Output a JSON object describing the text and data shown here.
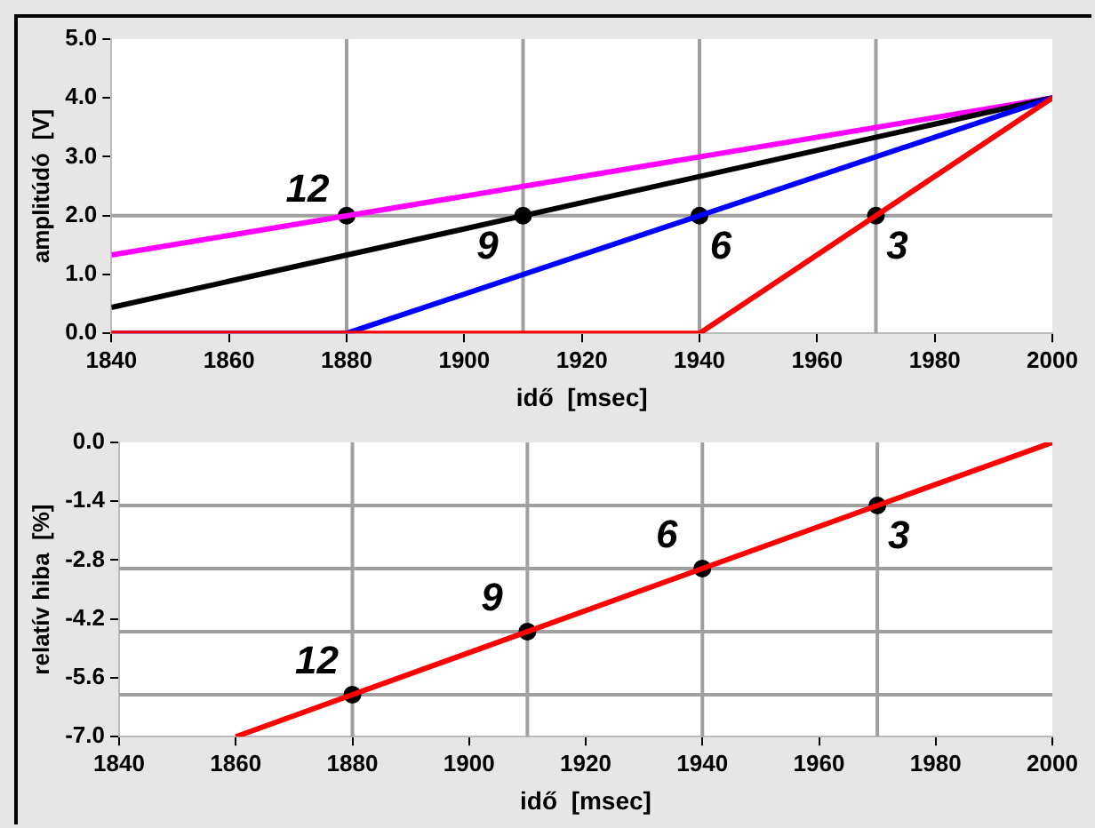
{
  "chart_data": [
    {
      "type": "line",
      "xlabel": "idő  [msec]",
      "ylabel": "amplitúdó  [V]",
      "xlim": [
        1840,
        2000
      ],
      "ylim": [
        0,
        5
      ],
      "xticks": [
        1840,
        1860,
        1880,
        1900,
        1920,
        1940,
        1960,
        1980,
        2000
      ],
      "yticks": [
        {
          "value": 0,
          "label": "0.0"
        },
        {
          "value": 1,
          "label": "1.0"
        },
        {
          "value": 2,
          "label": "2.0"
        },
        {
          "value": 3,
          "label": "3.0"
        },
        {
          "value": 4,
          "label": "4.0"
        },
        {
          "value": 5,
          "label": "5.0"
        }
      ],
      "grid": false,
      "legend": false,
      "marker": "none",
      "line_style": "solid",
      "series": [
        {
          "color": "#ff0000",
          "x": [
            1840,
            1940,
            2000
          ],
          "values": [
            0,
            0,
            4
          ]
        },
        {
          "color": "#0000ff",
          "x": [
            1840,
            1880,
            2000
          ],
          "values": [
            0,
            0,
            4
          ]
        },
        {
          "color": "#000000",
          "x": [
            1840,
            2000
          ],
          "values": [
            0.44,
            4
          ]
        },
        {
          "color": "#ff00ff",
          "x": [
            1840,
            2000
          ],
          "values": [
            1.33,
            4
          ]
        },
        {
          "type": "scatter",
          "color": "#000000",
          "marker": "circle",
          "x": [
            1880,
            1910,
            1940,
            1970
          ],
          "values": [
            2,
            2,
            2,
            2
          ]
        }
      ],
      "ref_lines": [
        {
          "axis": "x",
          "value": 1880,
          "color": "#a0a0a0"
        },
        {
          "axis": "x",
          "value": 1910,
          "color": "#a0a0a0"
        },
        {
          "axis": "x",
          "value": 1940,
          "color": "#a0a0a0"
        },
        {
          "axis": "x",
          "value": 1970,
          "color": "#a0a0a0"
        },
        {
          "axis": "y",
          "value": 2,
          "color": "#a0a0a0"
        }
      ],
      "annotations": [
        {
          "text": "12",
          "x": 1880,
          "y": 2
        },
        {
          "text": "9",
          "x": 1910,
          "y": 2
        },
        {
          "text": "6",
          "x": 1940,
          "y": 2
        },
        {
          "text": "3",
          "x": 1970,
          "y": 2
        }
      ]
    },
    {
      "type": "line",
      "xlabel": "idő  [msec]",
      "ylabel": "relatív hiba  [%]",
      "xlim": [
        1840,
        2000
      ],
      "ylim": [
        -7,
        0
      ],
      "xticks": [
        1840,
        1860,
        1880,
        1900,
        1920,
        1940,
        1960,
        1980,
        2000
      ],
      "yticks": [
        {
          "value": -7,
          "label": "-7.0"
        },
        {
          "value": -5.6,
          "label": "-5.6"
        },
        {
          "value": -4.2,
          "label": "-4.2"
        },
        {
          "value": -2.8,
          "label": "-2.8"
        },
        {
          "value": -1.4,
          "label": "-1.4"
        },
        {
          "value": 0,
          "label": "0.0"
        }
      ],
      "grid": false,
      "legend": false,
      "marker": "none",
      "line_style": "solid",
      "series": [
        {
          "color": "#ff0000",
          "x": [
            1860,
            2000
          ],
          "values": [
            -7,
            0
          ]
        },
        {
          "type": "scatter",
          "color": "#000000",
          "marker": "circle",
          "x": [
            1880,
            1910,
            1940,
            1970
          ],
          "values": [
            -6,
            -4.5,
            -3,
            -1.5
          ]
        }
      ],
      "ref_lines": [
        {
          "axis": "x",
          "value": 1880,
          "color": "#a0a0a0"
        },
        {
          "axis": "x",
          "value": 1910,
          "color": "#a0a0a0"
        },
        {
          "axis": "x",
          "value": 1940,
          "color": "#a0a0a0"
        },
        {
          "axis": "x",
          "value": 1970,
          "color": "#a0a0a0"
        },
        {
          "axis": "y",
          "value": -6,
          "color": "#a0a0a0"
        },
        {
          "axis": "y",
          "value": -4.5,
          "color": "#a0a0a0"
        },
        {
          "axis": "y",
          "value": -3,
          "color": "#a0a0a0"
        },
        {
          "axis": "y",
          "value": -1.5,
          "color": "#a0a0a0"
        }
      ],
      "annotations": [
        {
          "text": "12",
          "x": 1880,
          "y": -6
        },
        {
          "text": "9",
          "x": 1910,
          "y": -4.5
        },
        {
          "text": "6",
          "x": 1940,
          "y": -3
        },
        {
          "text": "3",
          "x": 1970,
          "y": -1.5
        }
      ]
    }
  ]
}
